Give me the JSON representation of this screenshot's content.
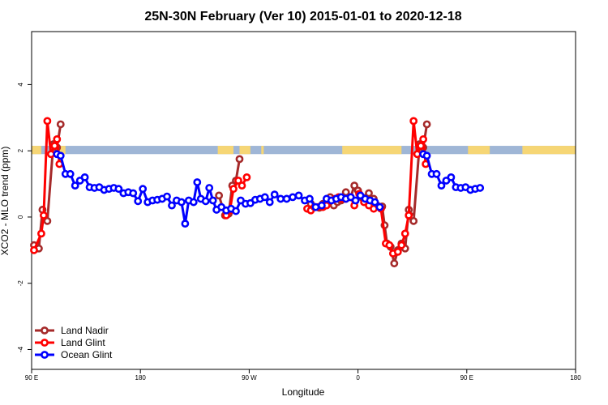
{
  "chart_data": {
    "type": "line",
    "title": "25N-30N February (Ver 10)   2015-01-01 to 2020-12-18",
    "xlabel": "Longitude",
    "ylabel": "XCO2 - MLO trend (ppm)",
    "x_ticks": [
      {
        "value": 90,
        "label": "90 E"
      },
      {
        "value": 180,
        "label": "180"
      },
      {
        "value": 270,
        "label": "90 W"
      },
      {
        "value": 360,
        "label": "0"
      },
      {
        "value": 450,
        "label": "90 E"
      },
      {
        "value": 540,
        "label": "180"
      }
    ],
    "y_ticks": [
      {
        "value": -4,
        "label": "-4"
      },
      {
        "value": -2,
        "label": "-2"
      },
      {
        "value": 0,
        "label": "0"
      },
      {
        "value": 2,
        "label": "2"
      },
      {
        "value": 4,
        "label": "4"
      }
    ],
    "xlim": [
      90,
      540
    ],
    "ylim": [
      -4.6,
      5.6
    ],
    "grid": false,
    "legend_position": "bottom-left",
    "band": {
      "y_range": [
        1.9,
        2.15
      ],
      "ocean_color": "#9fb6d6",
      "land_color": "#f6d675",
      "land_x_ranges": [
        [
          90,
          98
        ],
        [
          113,
          118
        ],
        [
          244,
          257
        ],
        [
          262,
          271
        ],
        [
          280,
          282
        ],
        [
          347,
          396
        ],
        [
          451,
          469
        ],
        [
          496,
          540
        ]
      ]
    },
    "series": [
      {
        "name": "Land Nadir",
        "color": "#a52a2a",
        "points": [
          [
            92,
            -0.85
          ],
          [
            96,
            -0.95
          ],
          [
            99,
            0.22
          ],
          [
            101,
            0.02
          ],
          [
            103,
            -0.12
          ],
          [
            108,
            2.2
          ],
          [
            111,
            2.1
          ],
          [
            114,
            2.8
          ],
          [
            245,
            0.65
          ],
          [
            250,
            0.05
          ],
          [
            253,
            0.1
          ],
          [
            256,
            0.95
          ],
          [
            259,
            1.1
          ],
          [
            262,
            1.75
          ],
          [
            321,
            0.4
          ],
          [
            325,
            0.3
          ],
          [
            328,
            0.28
          ],
          [
            331,
            0.4
          ],
          [
            334,
            0.45
          ],
          [
            337,
            0.6
          ],
          [
            340,
            0.35
          ],
          [
            343,
            0.45
          ],
          [
            346,
            0.5
          ],
          [
            350,
            0.75
          ],
          [
            354,
            0.6
          ],
          [
            357,
            0.95
          ],
          [
            360,
            0.8
          ],
          [
            363,
            0.6
          ],
          [
            369,
            0.72
          ],
          [
            373,
            0.55
          ],
          [
            380,
            0.32
          ],
          [
            382,
            -0.25
          ],
          [
            384,
            -0.8
          ],
          [
            387,
            -0.9
          ],
          [
            390,
            -1.4
          ],
          [
            393,
            -1.0
          ],
          [
            396,
            -0.8
          ],
          [
            399,
            -0.95
          ],
          [
            402,
            0.22
          ],
          [
            404,
            0.02
          ],
          [
            406,
            -0.12
          ],
          [
            411,
            2.2
          ],
          [
            414,
            2.1
          ],
          [
            417,
            2.8
          ]
        ]
      },
      {
        "name": "Land Glint",
        "color": "#ff0000",
        "points": [
          [
            92,
            -1.0
          ],
          [
            98,
            -0.5
          ],
          [
            100,
            0.05
          ],
          [
            103,
            2.9
          ],
          [
            106,
            1.9
          ],
          [
            109,
            2.15
          ],
          [
            111,
            2.35
          ],
          [
            113,
            1.6
          ],
          [
            251,
            0.05
          ],
          [
            254,
            0.2
          ],
          [
            257,
            0.85
          ],
          [
            261,
            1.1
          ],
          [
            264,
            0.95
          ],
          [
            268,
            1.2
          ],
          [
            318,
            0.25
          ],
          [
            321,
            0.2
          ],
          [
            324,
            0.3
          ],
          [
            327,
            0.3
          ],
          [
            331,
            0.3
          ],
          [
            334,
            0.35
          ],
          [
            337,
            0.5
          ],
          [
            341,
            0.55
          ],
          [
            344,
            0.6
          ],
          [
            347,
            0.55
          ],
          [
            350,
            0.55
          ],
          [
            354,
            0.6
          ],
          [
            357,
            0.35
          ],
          [
            361,
            0.7
          ],
          [
            365,
            0.45
          ],
          [
            369,
            0.35
          ],
          [
            373,
            0.25
          ],
          [
            379,
            0.25
          ],
          [
            383,
            -0.8
          ],
          [
            386,
            -0.85
          ],
          [
            389,
            -1.1
          ],
          [
            393,
            -1.05
          ],
          [
            396,
            -0.85
          ],
          [
            399,
            -0.5
          ],
          [
            402,
            0.05
          ],
          [
            406,
            2.9
          ],
          [
            409,
            1.9
          ],
          [
            412,
            2.15
          ],
          [
            414,
            2.35
          ],
          [
            416,
            1.6
          ]
        ]
      },
      {
        "name": "Ocean Glint",
        "color": "#0000ff",
        "points": [
          [
            111,
            1.9
          ],
          [
            114,
            1.85
          ],
          [
            118,
            1.3
          ],
          [
            122,
            1.3
          ],
          [
            126,
            0.95
          ],
          [
            130,
            1.1
          ],
          [
            134,
            1.2
          ],
          [
            138,
            0.9
          ],
          [
            142,
            0.88
          ],
          [
            146,
            0.9
          ],
          [
            150,
            0.82
          ],
          [
            154,
            0.85
          ],
          [
            158,
            0.88
          ],
          [
            162,
            0.85
          ],
          [
            166,
            0.72
          ],
          [
            170,
            0.75
          ],
          [
            174,
            0.72
          ],
          [
            178,
            0.48
          ],
          [
            182,
            0.85
          ],
          [
            186,
            0.45
          ],
          [
            190,
            0.5
          ],
          [
            194,
            0.52
          ],
          [
            198,
            0.55
          ],
          [
            202,
            0.62
          ],
          [
            206,
            0.35
          ],
          [
            210,
            0.5
          ],
          [
            214,
            0.45
          ],
          [
            217,
            -0.2
          ],
          [
            220,
            0.5
          ],
          [
            224,
            0.45
          ],
          [
            227,
            1.05
          ],
          [
            230,
            0.55
          ],
          [
            234,
            0.48
          ],
          [
            237,
            0.88
          ],
          [
            240,
            0.5
          ],
          [
            243,
            0.22
          ],
          [
            247,
            0.3
          ],
          [
            251,
            0.2
          ],
          [
            255,
            0.25
          ],
          [
            259,
            0.18
          ],
          [
            263,
            0.5
          ],
          [
            267,
            0.4
          ],
          [
            271,
            0.42
          ],
          [
            275,
            0.52
          ],
          [
            279,
            0.55
          ],
          [
            283,
            0.6
          ],
          [
            287,
            0.45
          ],
          [
            291,
            0.68
          ],
          [
            296,
            0.55
          ],
          [
            301,
            0.55
          ],
          [
            306,
            0.6
          ],
          [
            311,
            0.65
          ],
          [
            316,
            0.5
          ],
          [
            320,
            0.55
          ],
          [
            325,
            0.3
          ],
          [
            330,
            0.35
          ],
          [
            334,
            0.55
          ],
          [
            338,
            0.5
          ],
          [
            342,
            0.55
          ],
          [
            346,
            0.6
          ],
          [
            350,
            0.55
          ],
          [
            354,
            0.6
          ],
          [
            358,
            0.5
          ],
          [
            362,
            0.65
          ],
          [
            366,
            0.55
          ],
          [
            370,
            0.5
          ],
          [
            374,
            0.45
          ],
          [
            378,
            0.3
          ],
          [
            414,
            1.9
          ],
          [
            417,
            1.85
          ],
          [
            421,
            1.3
          ],
          [
            425,
            1.3
          ],
          [
            429,
            0.95
          ],
          [
            433,
            1.1
          ],
          [
            437,
            1.2
          ],
          [
            441,
            0.9
          ],
          [
            445,
            0.88
          ],
          [
            449,
            0.9
          ],
          [
            453,
            0.82
          ],
          [
            457,
            0.85
          ],
          [
            461,
            0.88
          ]
        ]
      }
    ]
  }
}
